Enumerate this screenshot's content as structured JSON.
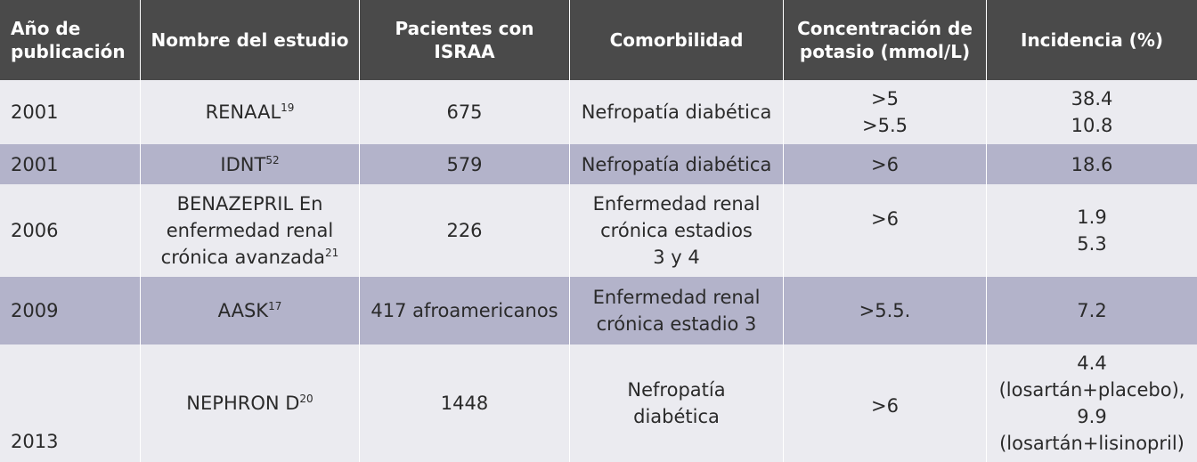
{
  "headers": {
    "anio": [
      "Año de",
      "publicación"
    ],
    "nombre": "Nombre del estudio",
    "pacientes": [
      "Pacientes con",
      "ISRAA"
    ],
    "comorbilidad": "Comorbilidad",
    "potasio": [
      "Concentración de",
      "potasio (mmol/L)"
    ],
    "incidencia": "Incidencia (%)"
  },
  "rows": [
    {
      "anio": "2001",
      "nombre": "RENAAL",
      "ref": "19",
      "pacientes": "675",
      "comorbilidad": [
        "Nefropatía diabética"
      ],
      "potasio": [
        ">5",
        ">5.5"
      ],
      "incidencia": [
        "38.4",
        "10.8"
      ]
    },
    {
      "anio": "2001",
      "nombre": "IDNT",
      "ref": "52",
      "pacientes": "579",
      "comorbilidad": [
        "Nefropatía diabética"
      ],
      "potasio": [
        ">6"
      ],
      "incidencia": [
        "18.6"
      ]
    },
    {
      "anio": "2006",
      "nombre_lines": [
        "BENAZEPRIL En",
        "enfermedad renal",
        "crónica avanzada"
      ],
      "ref": "21",
      "pacientes": "226",
      "comorbilidad": [
        "Enfermedad renal",
        "crónica estadios",
        "3 y 4"
      ],
      "potasio": [
        ">6"
      ],
      "incidencia": [
        "1.9",
        "5.3"
      ]
    },
    {
      "anio": "2009",
      "nombre": "AASK",
      "ref": "17",
      "pacientes": "417 afroamericanos",
      "comorbilidad": [
        "Enfermedad renal",
        "crónica estadio 3"
      ],
      "potasio": [
        ">5.5."
      ],
      "incidencia": [
        "7.2"
      ]
    },
    {
      "anio": "2013",
      "nombre": "NEPHRON D",
      "ref": "20",
      "pacientes": "1448",
      "comorbilidad": [
        "Nefropatía",
        "diabética"
      ],
      "potasio": [
        ">6"
      ],
      "incidencia": [
        "4.4",
        "(losartán+placebo),",
        "9.9",
        "(losartán+lisinopril)"
      ]
    }
  ],
  "colors": {
    "header_bg": "#4a4a4a",
    "row_light": "#ebebf0",
    "row_dark": "#b3b3ca"
  }
}
